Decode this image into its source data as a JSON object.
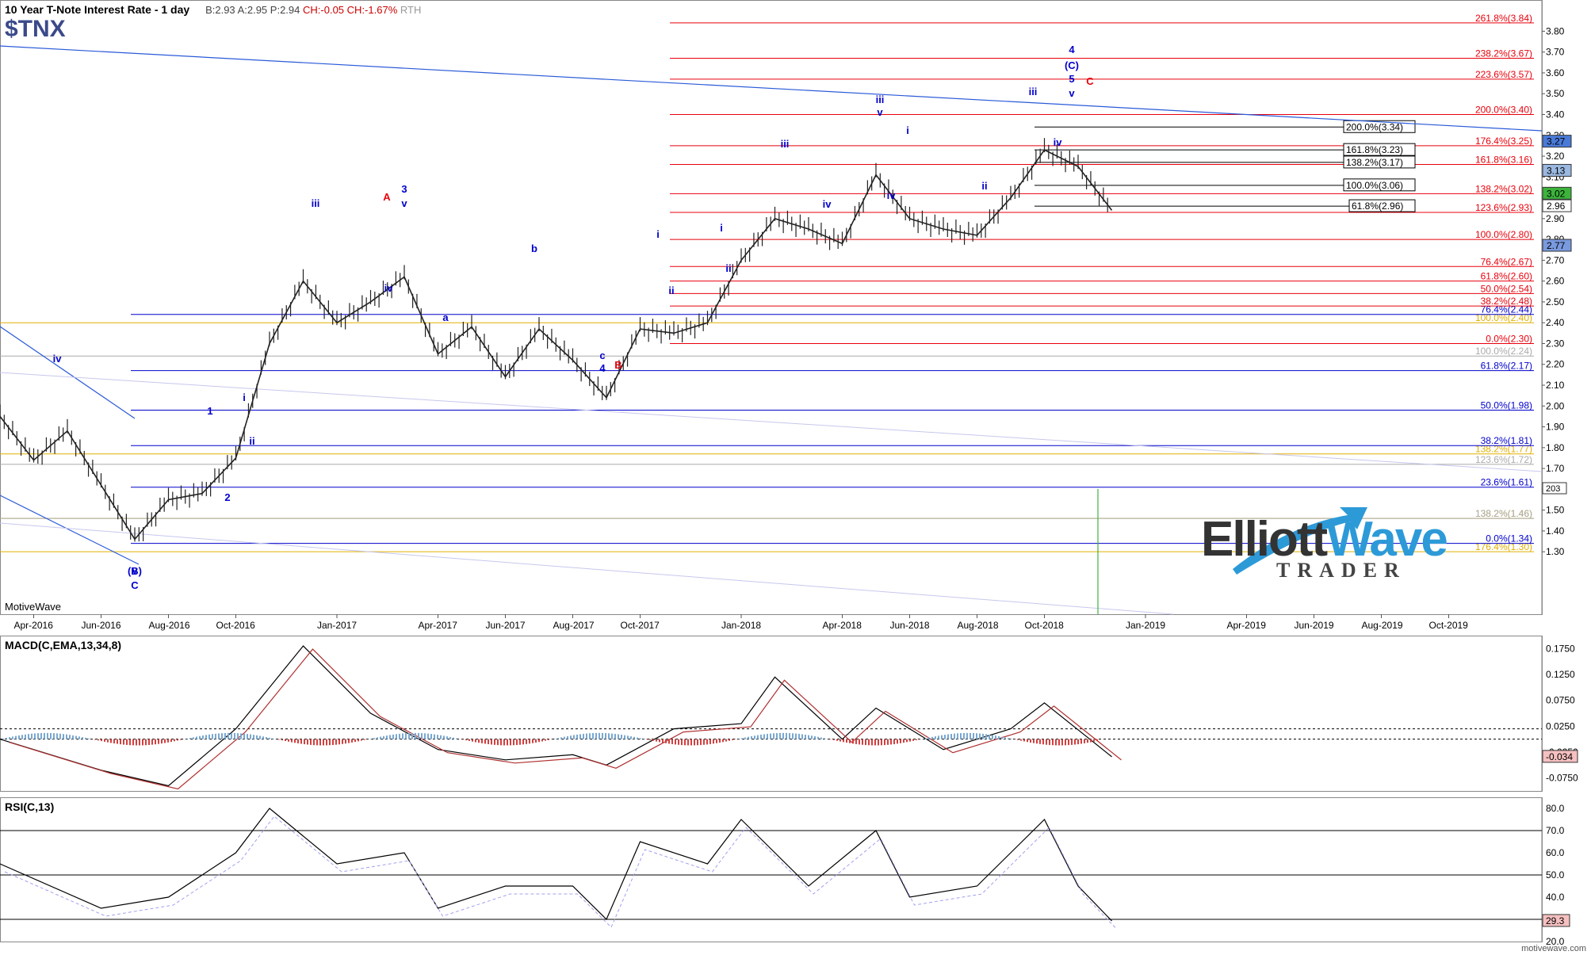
{
  "header": {
    "title": "10 Year T-Note Interest Rate - 1 day",
    "quote_b": "B:2.93",
    "quote_a": "A:2.95",
    "quote_p": "P:2.94",
    "quote_ch": "CH:-0.05",
    "quote_chp": "CH:-1.67%",
    "rth": "RTH",
    "symbol": "$TNX"
  },
  "watermark": "MotiveWave",
  "footer": "motivewave.com",
  "logo": {
    "line1a": "Elliott",
    "line1b": "Wave",
    "line2": "TRADER"
  },
  "colors": {
    "red": "#e8000b",
    "blue": "#0000cc",
    "gold": "#e0b000",
    "grey": "#aaaaaa",
    "macdBar": "#d24040"
  },
  "chart_data": [
    {
      "type": "line",
      "title": "10 Year T-Note Interest Rate - 1 day",
      "ylim": [
        1.0,
        3.95
      ],
      "y_ticks": [
        1.3,
        1.4,
        1.5,
        1.6,
        1.7,
        1.8,
        1.9,
        2.0,
        2.1,
        2.2,
        2.3,
        2.4,
        2.5,
        2.6,
        2.7,
        2.8,
        2.9,
        3.0,
        3.1,
        3.2,
        3.3,
        3.4,
        3.5,
        3.6,
        3.7,
        3.8
      ],
      "x_ticks": [
        "Apr-2016",
        "Jun-2016",
        "Aug-2016",
        "Oct-2016",
        "Jan-2017",
        "Apr-2017",
        "Jun-2017",
        "Aug-2017",
        "Oct-2017",
        "Jan-2018",
        "Apr-2018",
        "Jun-2018",
        "Aug-2018",
        "Oct-2018",
        "Jan-2019",
        "Apr-2019",
        "Jun-2019",
        "Aug-2019",
        "Oct-2019"
      ],
      "price_path": [
        [
          "Mar-2016",
          1.95
        ],
        [
          "Apr-2016",
          1.74
        ],
        [
          "May-2016",
          1.88
        ],
        [
          "Jun-2016",
          1.62
        ],
        [
          "Jul-2016",
          1.36
        ],
        [
          "Aug-2016",
          1.55
        ],
        [
          "Sep-2016",
          1.58
        ],
        [
          "Oct-2016",
          1.75
        ],
        [
          "Nov-2016",
          2.3
        ],
        [
          "Dec-2016",
          2.6
        ],
        [
          "Jan-2017",
          2.4
        ],
        [
          "Feb-2017",
          2.5
        ],
        [
          "Mar-2017",
          2.62
        ],
        [
          "Apr-2017",
          2.25
        ],
        [
          "May-2017",
          2.38
        ],
        [
          "Jun-2017",
          2.14
        ],
        [
          "Jul-2017",
          2.37
        ],
        [
          "Aug-2017",
          2.22
        ],
        [
          "Sep-2017",
          2.04
        ],
        [
          "Oct-2017",
          2.37
        ],
        [
          "Nov-2017",
          2.35
        ],
        [
          "Dec-2017",
          2.4
        ],
        [
          "Jan-2018",
          2.7
        ],
        [
          "Feb-2018",
          2.9
        ],
        [
          "Mar-2018",
          2.85
        ],
        [
          "Apr-2018",
          2.78
        ],
        [
          "May-2018",
          3.11
        ],
        [
          "Jun-2018",
          2.9
        ],
        [
          "Jul-2018",
          2.85
        ],
        [
          "Aug-2018",
          2.82
        ],
        [
          "Sep-2018",
          3.0
        ],
        [
          "Oct-2018",
          3.23
        ],
        [
          "Nov-2018",
          3.15
        ],
        [
          "Dec-2018",
          2.94
        ]
      ],
      "last_values": [
        "3.27",
        "3.13",
        "3.02",
        "2.96",
        "2.77"
      ],
      "fib_levels_red": [
        "261.8%(3.84)",
        "238.2%(3.67)",
        "223.6%(3.57)",
        "200.0%(3.40)",
        "176.4%(3.25)",
        "161.8%(3.16)",
        "138.2%(3.02)",
        "123.6%(2.93)",
        "100.0%(2.80)",
        "76.4%(2.67)",
        "61.8%(2.60)",
        "50.0%(2.54)",
        "38.2%(2.48)",
        "0.0%(2.30)"
      ],
      "fib_levels_blue": [
        "76.4%(2.44)",
        "61.8%(2.17)",
        "50.0%(1.98)",
        "38.2%(1.81)",
        "23.6%(1.61)",
        "0.0%(1.34)"
      ],
      "fib_levels_gold": [
        "100.0%(2.40)",
        "138.2%(1.77)",
        "138.2%(1.46)",
        "176.4%(1.30)"
      ],
      "fib_levels_grey": [
        "100.0%(2.24)",
        "123.6%(1.72)",
        "138.2%(1.46)"
      ],
      "fib_levels_black": [
        "200.0%(3.34)",
        "161.8%(3.23)",
        "138.2%(3.17)",
        "100.0%(3.06)",
        "61.8%(2.96)"
      ],
      "wave_labels": [
        "(B)",
        "C",
        "v",
        "iv",
        "1",
        "i",
        "ii",
        "2",
        "iii",
        "A",
        "3",
        "v",
        "iv",
        "a",
        "b",
        "c",
        "4",
        "B",
        "i",
        "ii",
        "iii",
        "i",
        "ii",
        "iii",
        "iv",
        "v",
        "iv",
        "i",
        "ii",
        "iii",
        "iv",
        "v",
        "5",
        "4",
        "(C)",
        "C"
      ],
      "axis_marker": "203"
    },
    {
      "type": "line",
      "title": "MACD(C,EMA,13,34,8)",
      "ylim": [
        -0.1,
        0.2
      ],
      "y_ticks": [
        0.175,
        0.125,
        0.075,
        0.025,
        -0.025,
        -0.075
      ],
      "last_value": "-0.034",
      "path": [
        [
          "Mar-2016",
          0.0
        ],
        [
          "Jun-2016",
          -0.06
        ],
        [
          "Aug-2016",
          -0.09
        ],
        [
          "Oct-2016",
          0.02
        ],
        [
          "Dec-2016",
          0.18
        ],
        [
          "Feb-2017",
          0.05
        ],
        [
          "Apr-2017",
          -0.02
        ],
        [
          "Jun-2017",
          -0.04
        ],
        [
          "Aug-2017",
          -0.03
        ],
        [
          "Sep-2017",
          -0.05
        ],
        [
          "Nov-2017",
          0.02
        ],
        [
          "Jan-2018",
          0.03
        ],
        [
          "Feb-2018",
          0.12
        ],
        [
          "Apr-2018",
          0.0
        ],
        [
          "May-2018",
          0.06
        ],
        [
          "Jul-2018",
          -0.02
        ],
        [
          "Sep-2018",
          0.02
        ],
        [
          "Oct-2018",
          0.07
        ],
        [
          "Dec-2018",
          -0.034
        ]
      ]
    },
    {
      "type": "line",
      "title": "RSI(C,13)",
      "ylim": [
        20,
        85
      ],
      "y_ticks": [
        80.0,
        70.0,
        60.0,
        50.0,
        40.0,
        30.0,
        20.0
      ],
      "last_value": "29.3",
      "path": [
        [
          "Mar-2016",
          55
        ],
        [
          "Jun-2016",
          35
        ],
        [
          "Aug-2016",
          40
        ],
        [
          "Oct-2016",
          60
        ],
        [
          "Nov-2016",
          80
        ],
        [
          "Jan-2017",
          55
        ],
        [
          "Mar-2017",
          60
        ],
        [
          "Apr-2017",
          35
        ],
        [
          "Jun-2017",
          45
        ],
        [
          "Aug-2017",
          45
        ],
        [
          "Sep-2017",
          30
        ],
        [
          "Oct-2017",
          65
        ],
        [
          "Dec-2017",
          55
        ],
        [
          "Jan-2018",
          75
        ],
        [
          "Mar-2018",
          45
        ],
        [
          "May-2018",
          70
        ],
        [
          "Jun-2018",
          40
        ],
        [
          "Aug-2018",
          45
        ],
        [
          "Oct-2018",
          75
        ],
        [
          "Nov-2018",
          45
        ],
        [
          "Dec-2018",
          29.3
        ]
      ]
    }
  ]
}
